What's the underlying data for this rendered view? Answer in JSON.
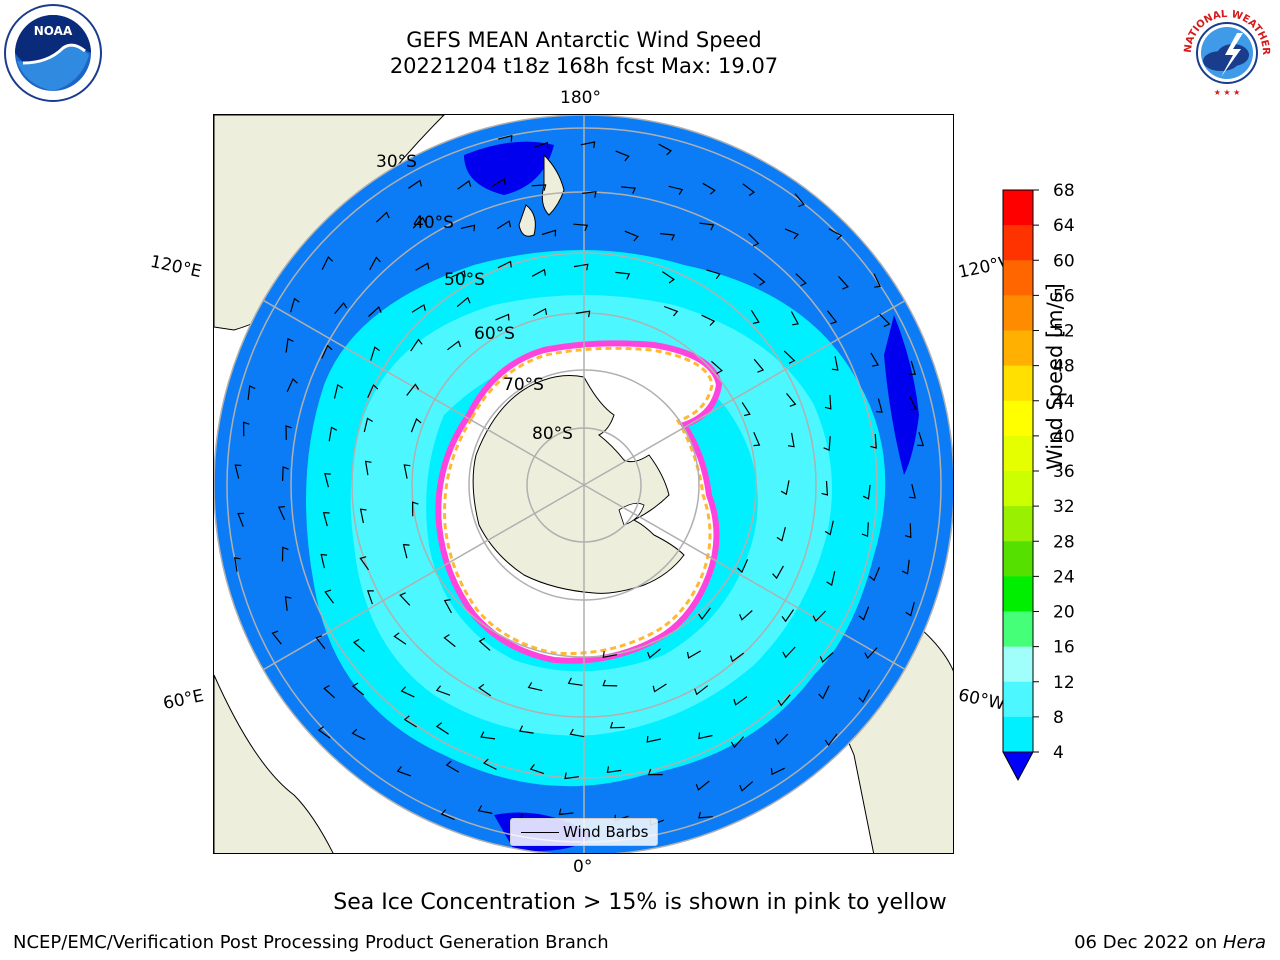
{
  "title_line1": "GEFS MEAN Antarctic Wind Speed",
  "title_line2": "20221204 t18z 168h fcst   Max: 19.07",
  "logos": {
    "left": "noaa-logo",
    "right": "national-weather-service-logo"
  },
  "map": {
    "projection": "south-polar-stereographic",
    "longitude_labels": [
      "180°",
      "120°E",
      "120°W",
      "60°E",
      "60°W",
      "0°"
    ],
    "latitude_labels": [
      "30°S",
      "40°S",
      "50°S",
      "60°S",
      "70°S",
      "80°S"
    ],
    "colors": {
      "land": "#eeeedc",
      "ocean_4_8": "#0b7cf6",
      "ocean_8_12": "#00f0ff",
      "ocean_12_16": "#4df7ff",
      "ocean_0_4": "#0000ee",
      "sea_ice": "#ffffff",
      "ice_edge_pink": "#ff44dd",
      "ice_edge_yellow": "#ffb833",
      "graticule": "#b0b0b0"
    }
  },
  "legend": {
    "wind_barbs_label": "Wind Barbs"
  },
  "colorbar": {
    "label": "Wind Speed [m/s]",
    "ticks": [
      "68",
      "64",
      "60",
      "56",
      "52",
      "48",
      "44",
      "40",
      "36",
      "32",
      "28",
      "24",
      "20",
      "16",
      "12",
      "8",
      "4"
    ],
    "colors": [
      "#ff0000",
      "#ff3300",
      "#ff6600",
      "#ff8c00",
      "#ffb000",
      "#ffe000",
      "#ffff00",
      "#e6ff00",
      "#ccff00",
      "#99f000",
      "#55e000",
      "#00ee00",
      "#44ff77",
      "#a0fffa",
      "#4df7ff",
      "#00f0ff",
      "#0b7cf6"
    ],
    "under_color": "#0000ff"
  },
  "caption": "Sea Ice Concentration > 15% is shown in pink to yellow",
  "footer_left": "NCEP/EMC/Verification Post Processing Product Generation Branch",
  "footer_right_date": "06 Dec 2022 on ",
  "footer_right_machine": "Hera"
}
